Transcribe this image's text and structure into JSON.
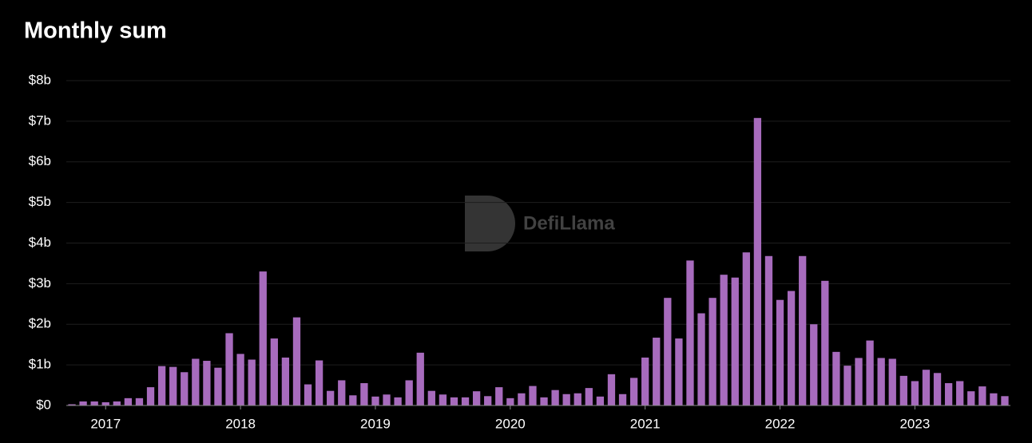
{
  "chart_data": {
    "type": "bar",
    "title": "Monthly sum",
    "watermark": "DefiLlama",
    "color": "#a76bbd",
    "grid": true,
    "categories": [
      null,
      null,
      null,
      "2017",
      null,
      null,
      null,
      null,
      null,
      null,
      null,
      null,
      null,
      null,
      null,
      "2018",
      null,
      null,
      null,
      null,
      null,
      null,
      null,
      null,
      null,
      null,
      null,
      "2019",
      null,
      null,
      null,
      null,
      null,
      null,
      null,
      null,
      null,
      null,
      null,
      "2020",
      null,
      null,
      null,
      null,
      null,
      null,
      null,
      null,
      null,
      null,
      null,
      "2021",
      null,
      null,
      null,
      null,
      null,
      null,
      null,
      null,
      null,
      null,
      null,
      "2022",
      null,
      null,
      null,
      null,
      null,
      null,
      null,
      null,
      null,
      null,
      null,
      "2023",
      null,
      null,
      null,
      null,
      null,
      null,
      null,
      null
    ],
    "values": [
      0.03,
      0.1,
      0.1,
      0.08,
      0.1,
      0.18,
      0.18,
      0.45,
      0.97,
      0.95,
      0.82,
      1.15,
      1.1,
      0.93,
      1.78,
      1.27,
      1.13,
      3.3,
      1.65,
      1.18,
      2.17,
      0.52,
      1.11,
      0.36,
      0.62,
      0.25,
      0.55,
      0.22,
      0.27,
      0.2,
      0.62,
      1.3,
      0.36,
      0.27,
      0.2,
      0.2,
      0.35,
      0.23,
      0.45,
      0.18,
      0.3,
      0.48,
      0.2,
      0.38,
      0.28,
      0.3,
      0.43,
      0.22,
      0.77,
      0.28,
      0.68,
      1.18,
      1.67,
      2.65,
      1.65,
      3.57,
      2.27,
      2.65,
      3.22,
      3.15,
      3.77,
      7.08,
      3.68,
      2.6,
      2.82,
      3.68,
      2.0,
      3.07,
      1.32,
      0.98,
      1.17,
      1.6,
      1.17,
      1.15,
      0.73,
      0.6,
      0.88,
      0.8,
      0.55,
      0.6,
      0.35,
      0.47,
      0.3,
      0.23
    ],
    "ylim": [
      0,
      8
    ],
    "yticks": [
      {
        "value": 0,
        "label": "$0"
      },
      {
        "value": 1,
        "label": "$1b"
      },
      {
        "value": 2,
        "label": "$2b"
      },
      {
        "value": 3,
        "label": "$3b"
      },
      {
        "value": 4,
        "label": "$4b"
      },
      {
        "value": 5,
        "label": "$5b"
      },
      {
        "value": 6,
        "label": "$6b"
      },
      {
        "value": 7,
        "label": "$7b"
      },
      {
        "value": 8,
        "label": "$8b"
      }
    ]
  }
}
